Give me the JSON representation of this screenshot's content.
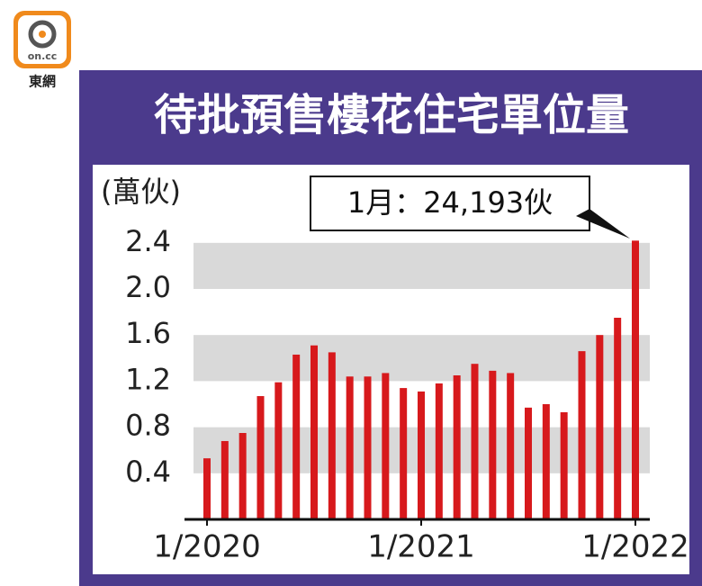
{
  "logo": {
    "mark": "on.cc",
    "name": "東網"
  },
  "chart_data": {
    "type": "bar",
    "title": "待批預售樓花住宅單位量",
    "unit_label": "(萬伙)",
    "annotation": "1月：24,193伙",
    "categories": [
      "1/2020",
      null,
      null,
      null,
      null,
      null,
      null,
      null,
      null,
      null,
      null,
      null,
      "1/2021",
      null,
      null,
      null,
      null,
      null,
      null,
      null,
      null,
      null,
      null,
      null,
      "1/2022"
    ],
    "values": [
      0.53,
      0.68,
      0.75,
      1.07,
      1.19,
      1.43,
      1.51,
      1.45,
      1.24,
      1.24,
      1.27,
      1.14,
      1.11,
      1.18,
      1.25,
      1.35,
      1.29,
      1.27,
      0.97,
      1.0,
      0.93,
      1.46,
      1.6,
      1.75,
      2.4193
    ],
    "color": "#d7191c",
    "ylim": [
      0,
      2.5
    ],
    "yticks": [
      0.4,
      0.8,
      1.2,
      1.6,
      {
        "value": 2,
        "label": "2.0"
      },
      2.4
    ],
    "grid": true
  }
}
